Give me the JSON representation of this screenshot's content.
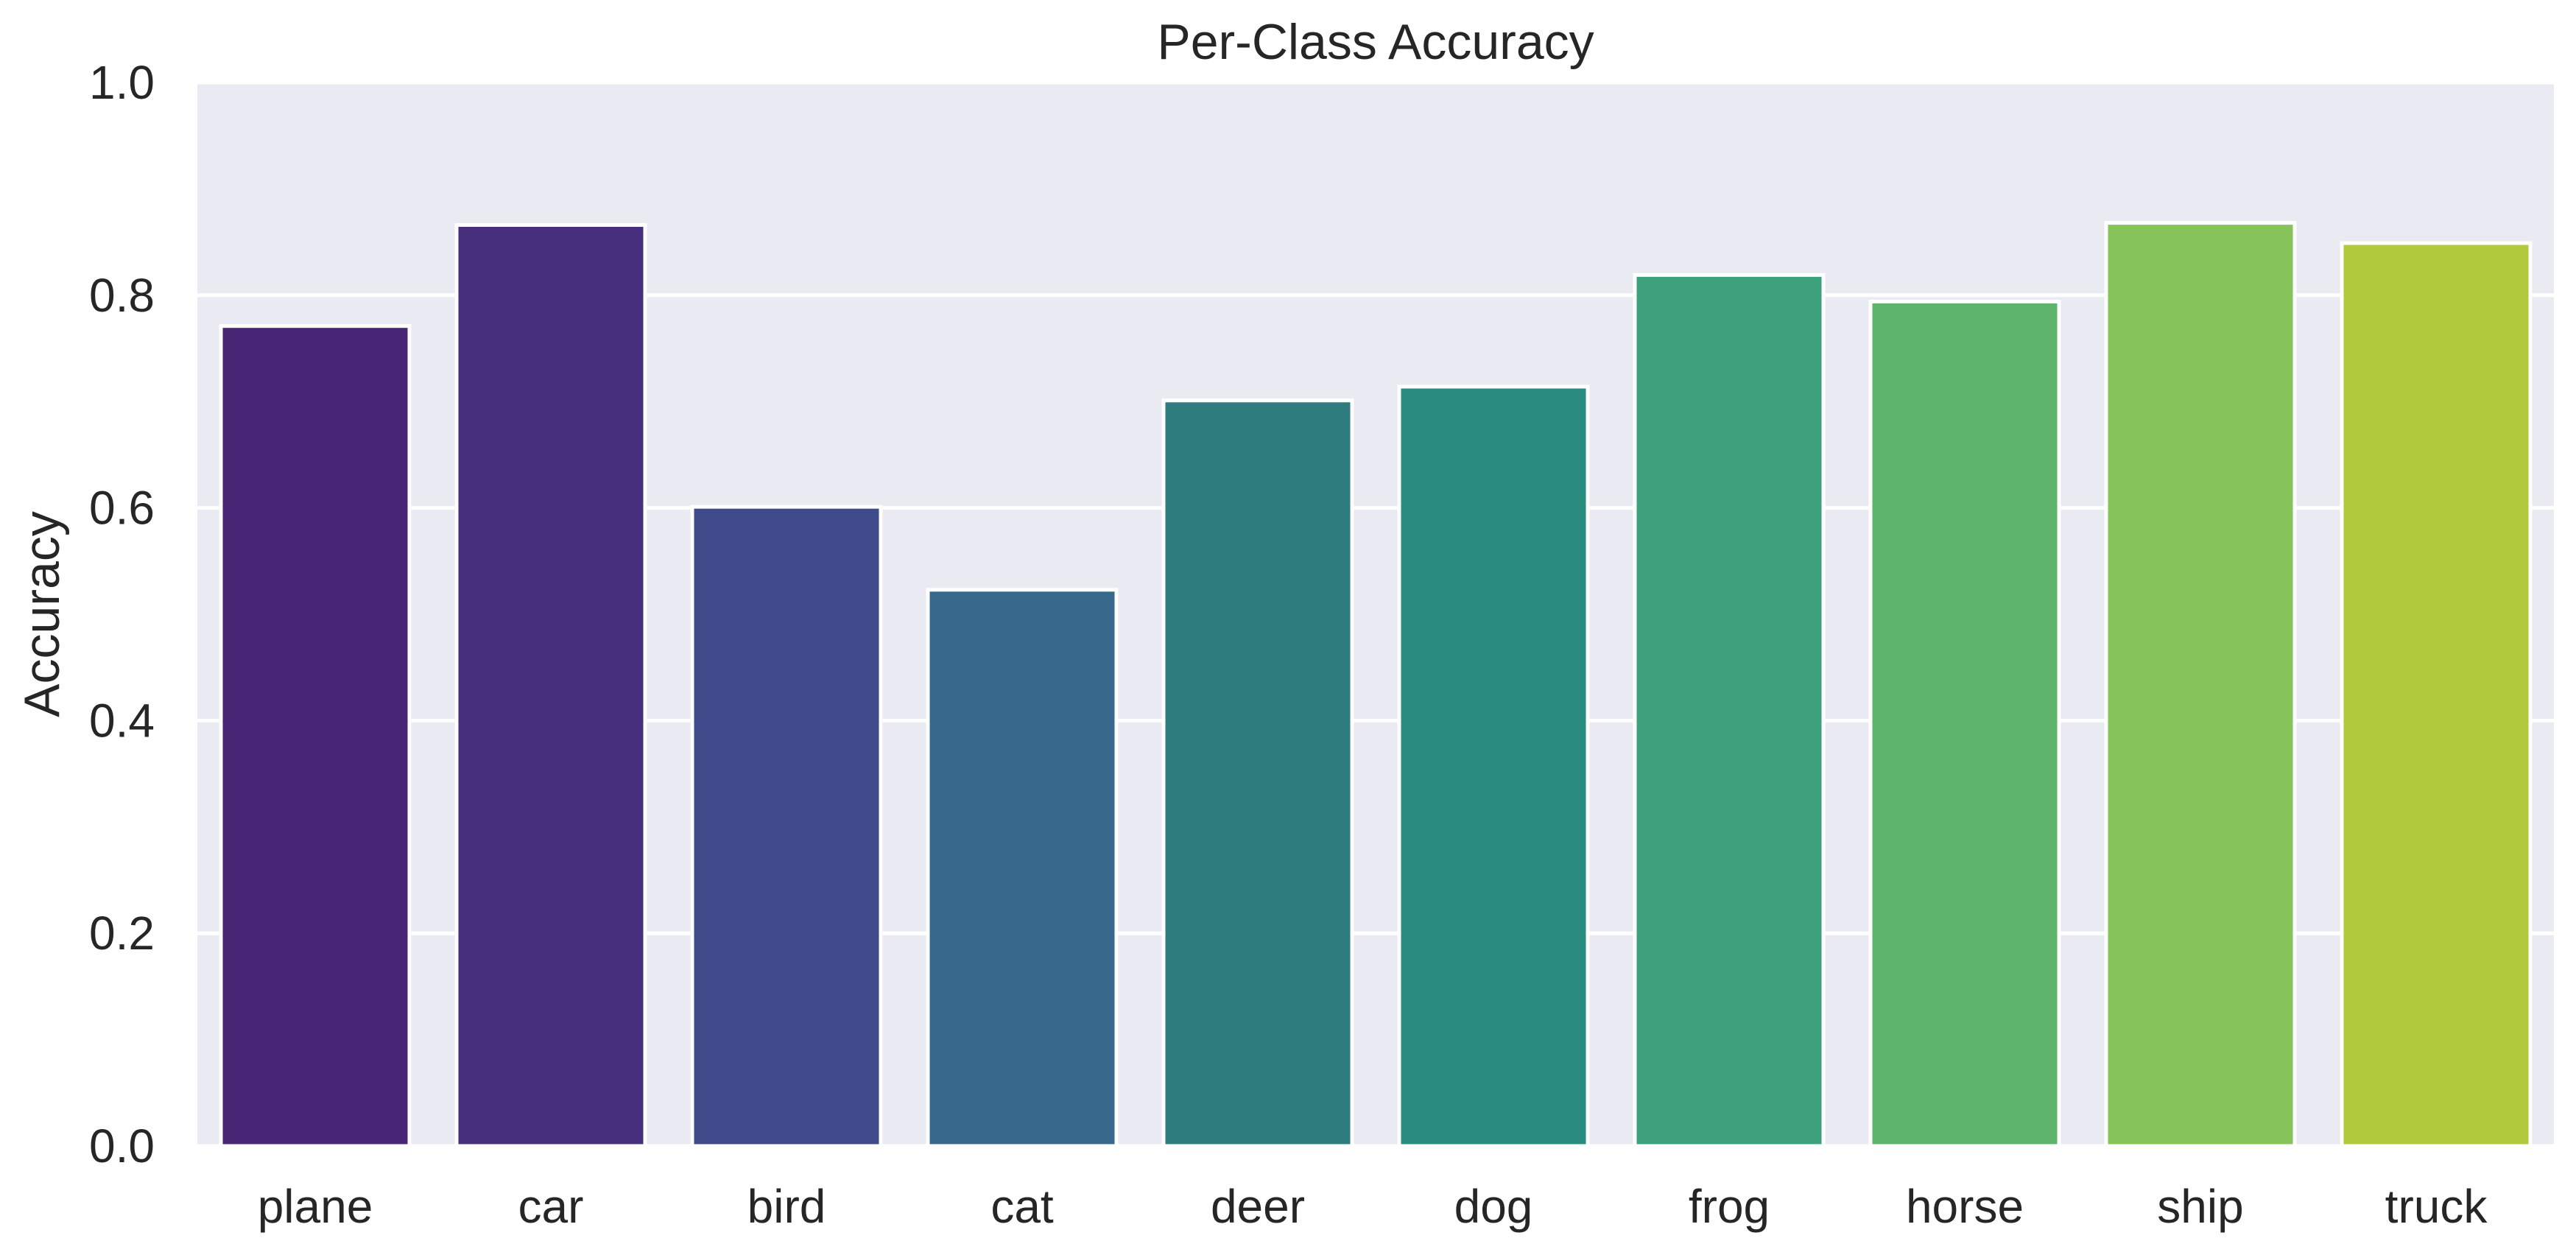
{
  "chart_data": {
    "type": "bar",
    "title": "Per-Class Accuracy",
    "xlabel": "",
    "ylabel": "Accuracy",
    "categories": [
      "plane",
      "car",
      "bird",
      "cat",
      "deer",
      "dog",
      "frog",
      "horse",
      "ship",
      "truck"
    ],
    "values": [
      0.771,
      0.866,
      0.601,
      0.523,
      0.701,
      0.714,
      0.819,
      0.794,
      0.868,
      0.849
    ],
    "colors": [
      "#482575",
      "#472f7d",
      "#3e4a89",
      "#37688c",
      "#2e7c7e",
      "#2a8c7e",
      "#3ba07b",
      "#5db56d",
      "#87c35b",
      "#b0c93d"
    ],
    "ylim": [
      0,
      1.0
    ],
    "yticks": [
      "0.0",
      "0.2",
      "0.4",
      "0.6",
      "0.8",
      "1.0"
    ],
    "grid": true,
    "background": "#eaeaf2",
    "gridColor": "#ffffff"
  }
}
